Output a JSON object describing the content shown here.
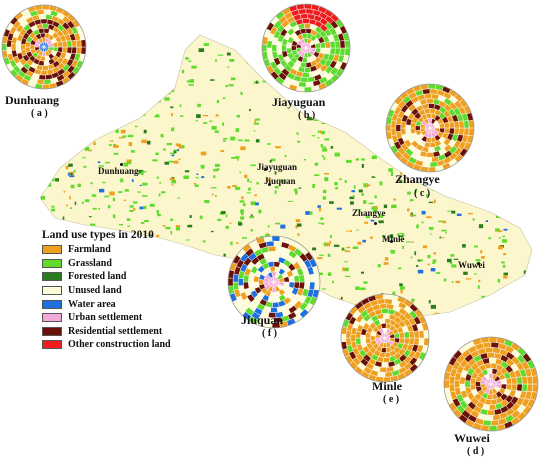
{
  "legend": {
    "title": "Land use types in 2010",
    "items": [
      {
        "label": "Farmland",
        "color": "#f0a020"
      },
      {
        "label": "Grassland",
        "color": "#5fdb2e"
      },
      {
        "label": "Forested land",
        "color": "#2a7d1e"
      },
      {
        "label": "Unused land",
        "color": "#fdfbd8"
      },
      {
        "label": "Water area",
        "color": "#1e6fe0"
      },
      {
        "label": "Urban settlement",
        "color": "#f2a8d8"
      },
      {
        "label": "Residential settlement",
        "color": "#6b1208"
      },
      {
        "label": "Other construction land",
        "color": "#ee1c1c"
      }
    ]
  },
  "map_cities": [
    {
      "name": "Dunhuang"
    },
    {
      "name": "Jiayuguan"
    },
    {
      "name": "Jiuquan"
    },
    {
      "name": "Zhangye"
    },
    {
      "name": "Minle"
    },
    {
      "name": "Wuwei"
    }
  ],
  "panels": [
    {
      "city": "Dunhuang",
      "tag": "( a )",
      "dominant": "residential"
    },
    {
      "city": "Jiayuguan",
      "tag": "( b )",
      "dominant": "grassland"
    },
    {
      "city": "Zhangye",
      "tag": "( c )",
      "dominant": "farmland"
    },
    {
      "city": "Wuwei",
      "tag": "( d )",
      "dominant": "farmland"
    },
    {
      "city": "Minle",
      "tag": "( e )",
      "dominant": "farmland"
    },
    {
      "city": "Jiuquan",
      "tag": "( f )",
      "dominant": "unused"
    }
  ]
}
